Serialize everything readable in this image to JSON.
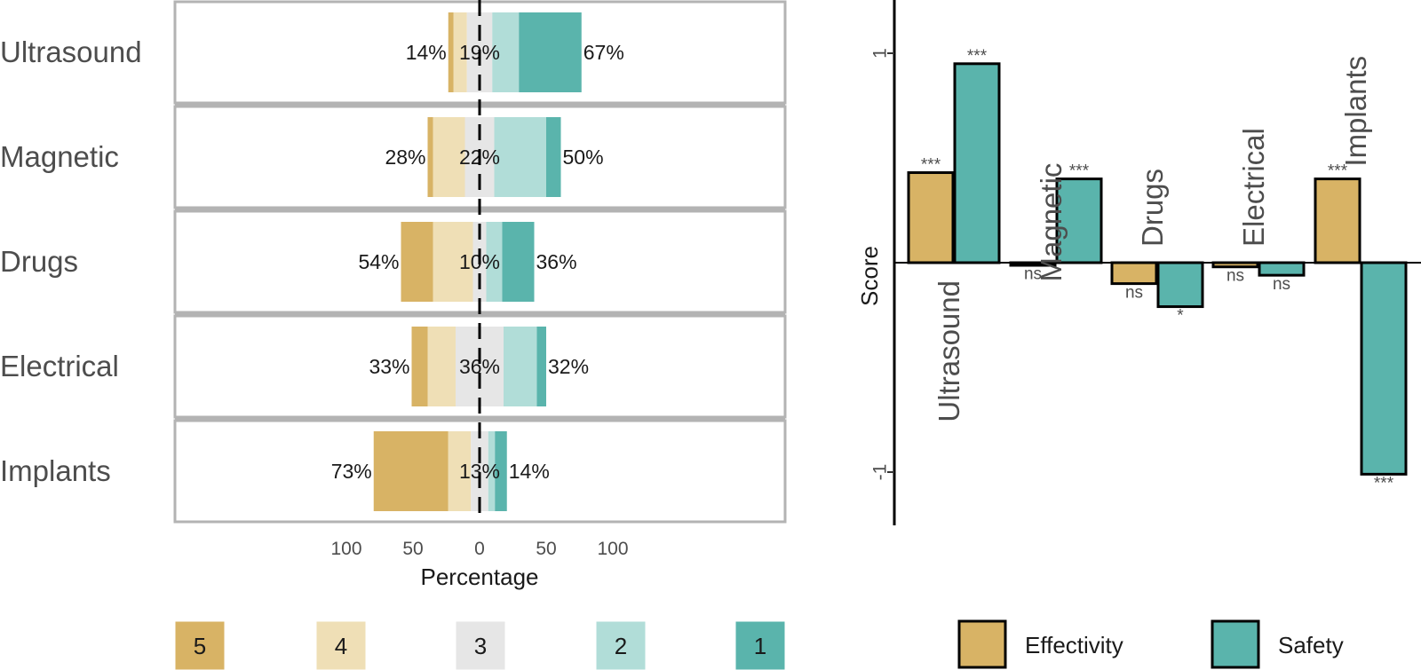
{
  "colors": {
    "level5": "#d8b365",
    "level4": "#efdfb6",
    "level3": "#e6e6e6",
    "level2": "#b1ddd8",
    "level1": "#5ab4ac",
    "effectivity": "#d8b365",
    "safety": "#5ab4ac",
    "panel_border": "#b3b3b3"
  },
  "chart_data": [
    {
      "type": "bar",
      "orientation": "horizontal-diverging",
      "categories": [
        "Ultrasound",
        "Magnetic",
        "Drugs",
        "Electrical",
        "Implants"
      ],
      "series": [
        {
          "name": "5",
          "values": [
            4,
            4,
            24,
            12,
            56
          ]
        },
        {
          "name": "4",
          "values": [
            10,
            24,
            30,
            21,
            17
          ]
        },
        {
          "name": "3",
          "values": [
            19,
            22,
            10,
            36,
            13
          ]
        },
        {
          "name": "2",
          "values": [
            20,
            39,
            12,
            25,
            5
          ]
        },
        {
          "name": "1",
          "values": [
            47,
            11,
            24,
            7,
            9
          ]
        }
      ],
      "left_labels": [
        "14%",
        "28%",
        "54%",
        "33%",
        "73%"
      ],
      "center_labels": [
        "19%",
        "22%",
        "10%",
        "36%",
        "13%"
      ],
      "right_labels": [
        "67%",
        "50%",
        "36%",
        "32%",
        "14%"
      ],
      "xlabel": "Percentage",
      "xticks": [
        "100",
        "50",
        "0",
        "50",
        "100"
      ],
      "xlim": [
        -100,
        100
      ],
      "legend": [
        "5",
        "4",
        "3",
        "2",
        "1"
      ],
      "legend_position": "bottom"
    },
    {
      "type": "bar",
      "categories": [
        "Ultrasound",
        "Magnetic",
        "Drugs",
        "Electrical",
        "Implants"
      ],
      "series": [
        {
          "name": "Effectivity",
          "values": [
            0.43,
            -0.01,
            -0.1,
            -0.02,
            0.4
          ],
          "significance": [
            "***",
            "ns",
            "ns",
            "ns",
            "***"
          ]
        },
        {
          "name": "Safety",
          "values": [
            0.95,
            0.4,
            -0.21,
            -0.06,
            -1.01
          ],
          "significance": [
            "***",
            "***",
            "*",
            "ns",
            "***"
          ]
        }
      ],
      "ylabel": "Score",
      "yticks": [
        "1",
        "-1"
      ],
      "ylim": [
        -1.25,
        1.25
      ],
      "legend_position": "bottom"
    }
  ]
}
